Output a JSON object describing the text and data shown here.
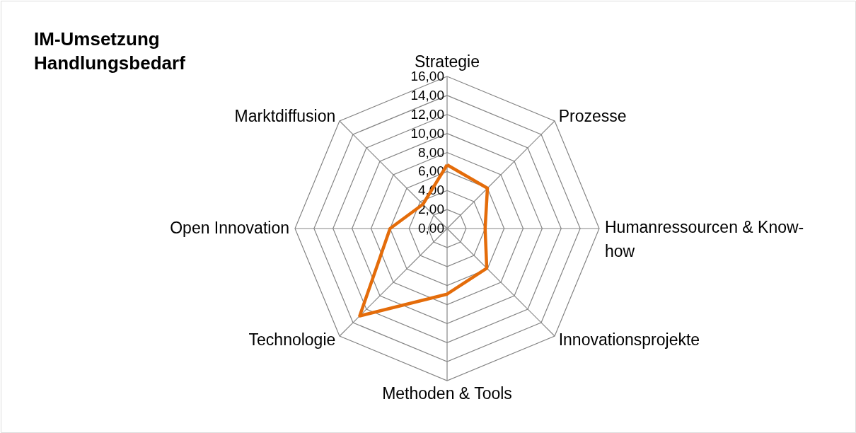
{
  "chart_data": {
    "type": "radar",
    "title": "IM-Umsetzung Handlungsbedarf",
    "categories": [
      "Strategie",
      "Prozesse",
      "Humanressourcen & Know-how",
      "Innovationsprojekte",
      "Methoden & Tools",
      "Technologie",
      "Open Innovation",
      "Marktdiffusion"
    ],
    "series": [
      {
        "color": "#e46c0a",
        "values": [
          6.7,
          6.0,
          4.0,
          5.9,
          6.9,
          13.0,
          6.0,
          3.6
        ]
      }
    ],
    "ylim": [
      0,
      16
    ],
    "yticks": [
      {
        "value": 0,
        "label": "0,00"
      },
      {
        "value": 2,
        "label": "2,00"
      },
      {
        "value": 4,
        "label": "4,00"
      },
      {
        "value": 6,
        "label": "6,00"
      },
      {
        "value": 8,
        "label": "8,00"
      },
      {
        "value": 10,
        "label": "10,00"
      },
      {
        "value": 12,
        "label": "12,00"
      },
      {
        "value": 14,
        "label": "14,00"
      },
      {
        "value": 16,
        "label": "16,00"
      }
    ],
    "grid": true
  }
}
